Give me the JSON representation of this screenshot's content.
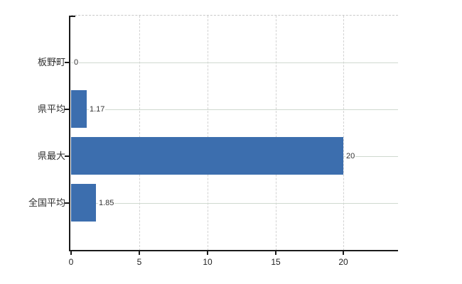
{
  "chart_data": {
    "type": "bar",
    "orientation": "horizontal",
    "categories": [
      "板野町",
      "県平均",
      "県最大",
      "全国平均"
    ],
    "values": [
      0,
      1.17,
      20,
      1.85
    ],
    "data_labels": [
      "0",
      "1.17",
      "20",
      "1.85"
    ],
    "xticks": [
      0,
      5,
      10,
      15,
      20
    ],
    "xtick_labels": [
      "0",
      "5",
      "10",
      "15",
      "20"
    ],
    "xlim": [
      0,
      24
    ],
    "grid": true,
    "legend": false,
    "title": "",
    "xlabel": "",
    "ylabel": "",
    "colors": {
      "bar": "#3c6eae",
      "h_gridline": "#cfd9cf",
      "v_gridline": "#d2d2d2",
      "plot_border": "#c8c8c8",
      "axis": "#1a1a1a",
      "text": "#303030"
    }
  }
}
